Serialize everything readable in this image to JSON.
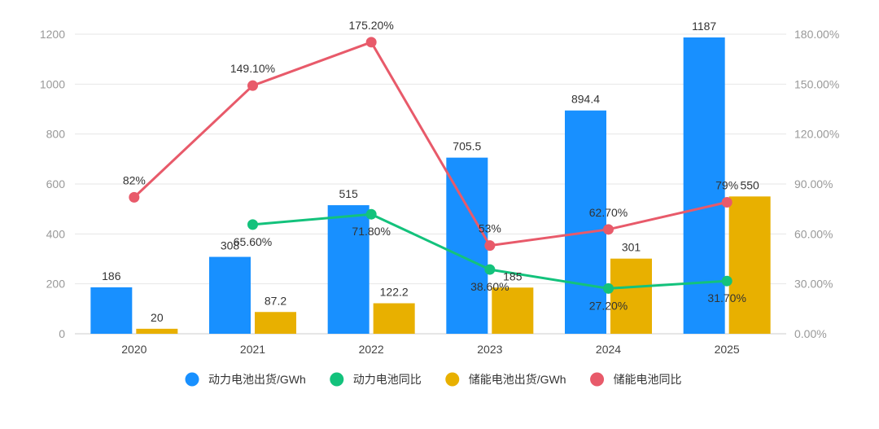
{
  "chart_data": {
    "type": "bar",
    "categories": [
      "2020",
      "2021",
      "2022",
      "2023",
      "2024",
      "2025"
    ],
    "y_left": {
      "min": 0,
      "max": 1200,
      "ticks": [
        "0",
        "200",
        "400",
        "600",
        "800",
        "1000",
        "1200"
      ]
    },
    "y_right": {
      "min": 0,
      "max": 180,
      "ticks": [
        "0.00%",
        "30.00%",
        "60.00%",
        "90.00%",
        "120.00%",
        "150.00%",
        "180.00%"
      ]
    },
    "grid": true,
    "legend_position": "bottom",
    "series": [
      {
        "name": "动力电池出货/GWh",
        "type": "bar",
        "axis": "left",
        "color": "#1890FF",
        "values": [
          186,
          308,
          515,
          705.5,
          894.4,
          1187
        ],
        "labels": [
          "186",
          "308",
          "515",
          "705.5",
          "894.4",
          "1187"
        ]
      },
      {
        "name": "动力电池同比",
        "type": "line",
        "axis": "right",
        "color": "#13C27C",
        "values": [
          null,
          65.6,
          71.8,
          38.6,
          27.2,
          31.7
        ],
        "labels": [
          "",
          "65.60%",
          "71.80%",
          "38.60%",
          "27.20%",
          "31.70%"
        ]
      },
      {
        "name": "储能电池出货/GWh",
        "type": "bar",
        "axis": "left",
        "color": "#E8B000",
        "values": [
          20,
          87.2,
          122.2,
          185,
          301,
          550
        ],
        "labels": [
          "20",
          "87.2",
          "122.2",
          "185",
          "301",
          "550"
        ]
      },
      {
        "name": "储能电池同比",
        "type": "line",
        "axis": "right",
        "color": "#E85A6A",
        "values": [
          82,
          149.1,
          175.2,
          53,
          62.7,
          79
        ],
        "labels": [
          "82%",
          "149.10%",
          "175.20%",
          "53%",
          "62.70%",
          "79%"
        ]
      }
    ]
  }
}
